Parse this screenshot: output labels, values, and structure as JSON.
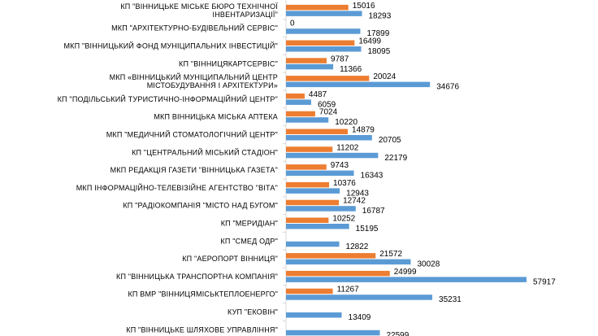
{
  "chart_data": {
    "type": "bar",
    "orientation": "horizontal",
    "title": "",
    "xlabel": "",
    "ylabel": "",
    "grid": false,
    "legend": "none",
    "xlim": [
      0,
      60000
    ],
    "categories": [
      "КП \"ВІННИЦЬКЕ МІСЬКЕ БЮРО ТЕХНІЧНОЇ ІНВЕНТАРИЗАЦІЇ\"",
      "МКП \"АРХІТЕКТУРНО-БУДІВЕЛЬНИЙ СЕРВІС\"",
      "МКП \"ВІННИЦЬКИЙ ФОНД МУНІЦИПАЛЬНИХ ІНВЕСТИЦІЙ\"",
      "КП \"ВІННИЦЯКАРТСЕРВІС\"",
      "МКП «ВІННИЦЬКИЙ МУНІЦИПАЛЬНИЙ ЦЕНТР МІСТОБУДУВАННЯ І АРХІТЕКТУРИ»",
      "КП \"ПОДІЛЬСЬКИЙ ТУРИСТИЧНО-ІНФОРМАЦІЙНИЙ ЦЕНТР\"",
      "МКП ВІННИЦЬКА МІСЬКА АПТЕКА",
      "МКП \"МЕДИЧНИЙ СТОМАТОЛОГІЧНИЙ ЦЕНТР\"",
      "КП \"ЦЕНТРАЛЬНИЙ МІСЬКИЙ СТАДІОН\"",
      "МКП РЕДАКЦІЯ ГАЗЕТИ \"ВІННИЦЬКА ГАЗЕТА\"",
      "МКП ІНФОРМАЦІЙНО-ТЕЛЕВІЗІЙНЕ АГЕНТСТВО \"ВІТА\"",
      "КП \"РАДІОКОМПАНІЯ \"МІСТО НАД БУГОМ\"",
      "КП \"МЕРИДІАН\"",
      "КП \"СМЕД ОДР\"",
      "КП \"АЕРОПОРТ ВІННИЦЯ\"",
      "КП \"ВІННИЦЬКА ТРАНСПОРТНА КОМПАНІЯ\"",
      "КП ВМР \"ВІННИЦЯМІСЬКТЕПЛОЕНЕРГО\"",
      "КУП \"ЕКОВІН\"",
      "КП \"ВІННИЦЬКЕ ШЛЯХОВЕ УПРАВЛІННЯ\""
    ],
    "series": [
      {
        "color": "#ED7D31",
        "values": [
          15016,
          0,
          16499,
          9787,
          20024,
          4487,
          7024,
          14879,
          11202,
          9743,
          10376,
          12742,
          10252,
          null,
          21572,
          24999,
          11267,
          null,
          null
        ]
      },
      {
        "color": "#5B9BD5",
        "values": [
          18293,
          17899,
          18095,
          11366,
          34676,
          6059,
          10220,
          20705,
          22179,
          16343,
          12943,
          16787,
          15195,
          12822,
          30028,
          57917,
          35231,
          13409,
          22599
        ]
      }
    ]
  }
}
